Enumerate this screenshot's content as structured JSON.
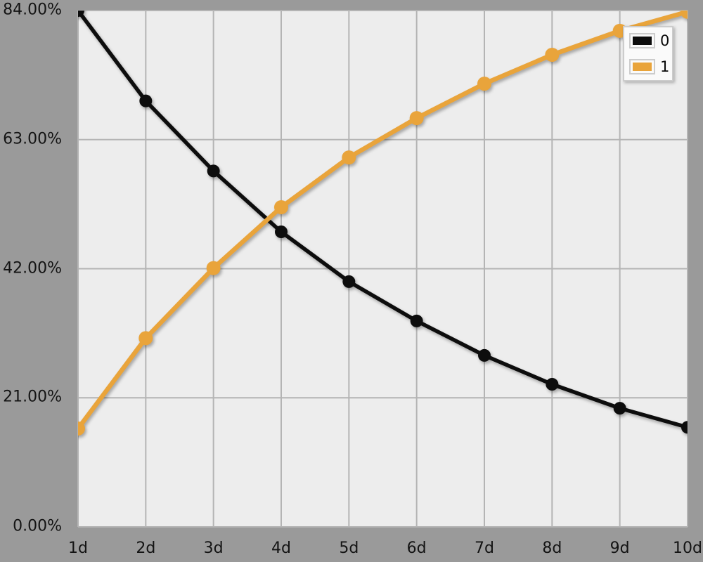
{
  "chart_data": {
    "type": "line",
    "title": "",
    "xlabel": "",
    "ylabel": "",
    "categories": [
      "1d",
      "2d",
      "3d",
      "4d",
      "5d",
      "6d",
      "7d",
      "8d",
      "9d",
      "10d"
    ],
    "series": [
      {
        "name": "0",
        "color": "#0d0d0d",
        "marker": "circle",
        "values": [
          84.0,
          69.3,
          57.9,
          48.0,
          39.9,
          33.5,
          27.9,
          23.2,
          19.3,
          16.2
        ]
      },
      {
        "name": "1",
        "color": "#e9a43b",
        "marker": "circle",
        "values": [
          16.0,
          30.7,
          42.1,
          52.0,
          60.1,
          66.5,
          72.1,
          76.8,
          80.7,
          83.8
        ]
      }
    ],
    "y_ticks": [
      {
        "value": 0,
        "label": "0.00%"
      },
      {
        "value": 21,
        "label": "21.00%"
      },
      {
        "value": 42,
        "label": "42.00%"
      },
      {
        "value": 63,
        "label": "63.00%"
      },
      {
        "value": 84,
        "label": "84.00%"
      }
    ],
    "ylim": [
      0,
      84
    ],
    "grid": true,
    "legend_position": "top-right",
    "colors": {
      "background": "#9a9a9a",
      "plot_background": "#ededed",
      "gridline": "#b4b4b4",
      "tick_label": "#141414",
      "legend_background": "#fafafa",
      "legend_border": "#cccccc"
    }
  }
}
